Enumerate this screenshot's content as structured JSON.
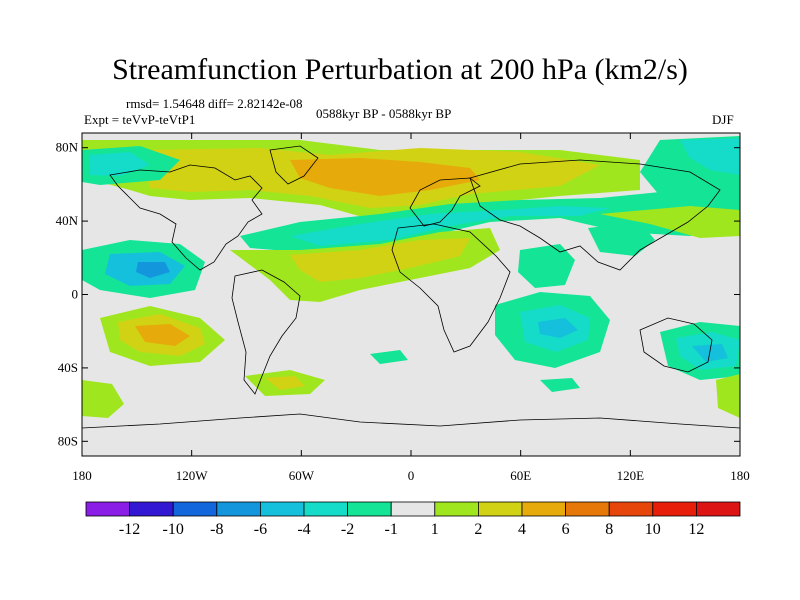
{
  "title": "Streamfunction Perturbation at 200 hPa (km2/s)",
  "stats_text": "rmsd= 1.54648 diff= 2.82142e-08",
  "experiment_text": "Expt = teVvP-teVtP1",
  "period_text": "0588kyr BP - 0588kyr BP",
  "season_text": "DJF",
  "lat_ticks": [
    {
      "label": "80N",
      "value": 80
    },
    {
      "label": "40N",
      "value": 40
    },
    {
      "label": "0",
      "value": 0
    },
    {
      "label": "40S",
      "value": -40
    },
    {
      "label": "80S",
      "value": -80
    }
  ],
  "lon_ticks": [
    {
      "label": "180",
      "value": -180
    },
    {
      "label": "120W",
      "value": -120
    },
    {
      "label": "60W",
      "value": -60
    },
    {
      "label": "0",
      "value": 0
    },
    {
      "label": "60E",
      "value": 60
    },
    {
      "label": "120E",
      "value": 120
    },
    {
      "label": "180",
      "value": 180
    }
  ],
  "colorbar": {
    "labels": [
      "-12",
      "-10",
      "-8",
      "-6",
      "-4",
      "-2",
      "-1",
      "1",
      "2",
      "4",
      "6",
      "8",
      "10",
      "12"
    ],
    "colors": [
      "#8a1ee6",
      "#3218d2",
      "#1466dc",
      "#1496dc",
      "#14c0dc",
      "#14dcc8",
      "#14e496",
      "#e6e6e6",
      "#a0e61e",
      "#d2d214",
      "#e6aa0a",
      "#e6780a",
      "#e6460a",
      "#e61e0a",
      "#dc1414"
    ]
  },
  "map_fill_color": "#e6e6e6",
  "coastline_color": "#000000"
}
